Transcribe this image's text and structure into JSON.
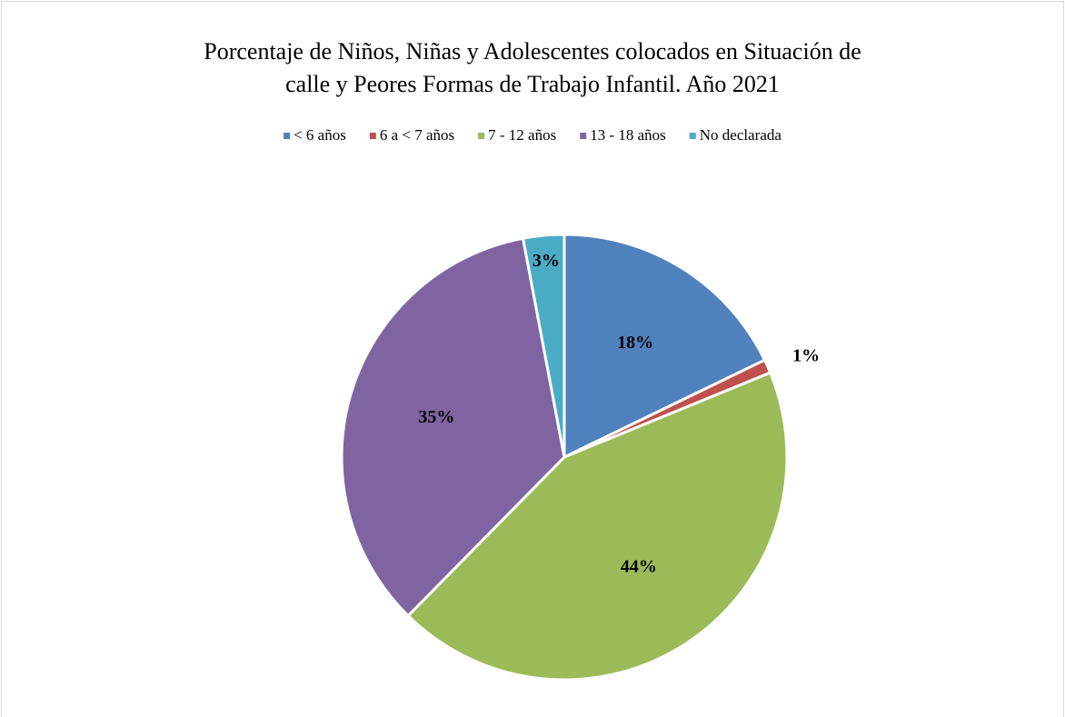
{
  "chart_data": {
    "type": "pie",
    "title": [
      "Porcentaje de Niños, Niñas y Adolescentes colocados en Situación de",
      "calle y Peores Formas de Trabajo Infantil. Año 2021"
    ],
    "categories": [
      "< 6 años",
      "6 a < 7 años",
      "7 - 12 años",
      "13  - 18 años",
      "No declarada"
    ],
    "values": [
      18,
      1,
      44,
      35,
      3
    ],
    "value_labels": [
      "18%",
      "1%",
      "44%",
      "35%",
      "3%"
    ],
    "colors": [
      "#4f81bd",
      "#c0504d",
      "#9bbb59",
      "#8064a2",
      "#4bacc6"
    ],
    "legend": "top"
  }
}
